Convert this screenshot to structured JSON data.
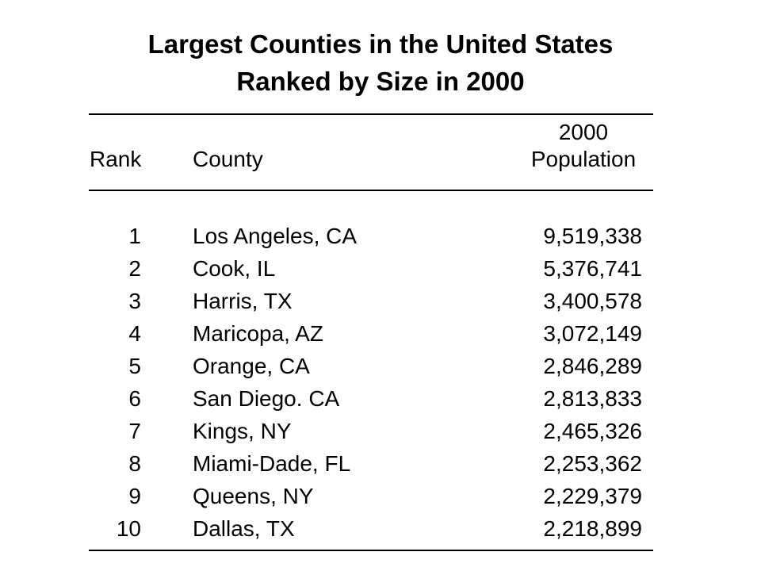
{
  "title": {
    "line1": "Largest Counties in the United States",
    "line2": "Ranked by Size in 2000"
  },
  "headers": {
    "rank": "Rank",
    "county": "County",
    "population_line1": "2000",
    "population_line2": "Population"
  },
  "rows": [
    {
      "rank": "1",
      "county": "Los Angeles, CA",
      "population": "9,519,338"
    },
    {
      "rank": "2",
      "county": "Cook, IL",
      "population": "5,376,741"
    },
    {
      "rank": "3",
      "county": "Harris, TX",
      "population": "3,400,578"
    },
    {
      "rank": "4",
      "county": "Maricopa, AZ",
      "population": "3,072,149"
    },
    {
      "rank": "5",
      "county": "Orange, CA",
      "population": "2,846,289"
    },
    {
      "rank": "6",
      "county": "San Diego. CA",
      "population": "2,813,833"
    },
    {
      "rank": "7",
      "county": "Kings, NY",
      "population": "2,465,326"
    },
    {
      "rank": "8",
      "county": "Miami-Dade, FL",
      "population": "2,253,362"
    },
    {
      "rank": "9",
      "county": "Queens, NY",
      "population": "2,229,379"
    },
    {
      "rank": "10",
      "county": "Dallas, TX",
      "population": "2,218,899"
    }
  ]
}
